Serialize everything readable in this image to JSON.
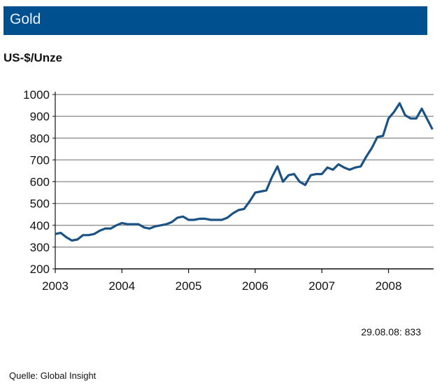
{
  "header": {
    "title": "Gold"
  },
  "chart_data": {
    "type": "line",
    "title": "Gold",
    "ylabel": "US-$/Unze",
    "xlabel": "",
    "ylim": [
      200,
      1000
    ],
    "yticks": [
      200,
      300,
      400,
      500,
      600,
      700,
      800,
      900,
      1000
    ],
    "xticks": [
      "2003",
      "2004",
      "2005",
      "2006",
      "2007",
      "2008"
    ],
    "xlim": [
      "2003-01",
      "2008-08"
    ],
    "grid": true,
    "line_color": "#1a5284",
    "x": [
      "2003-01",
      "2003-02",
      "2003-03",
      "2003-04",
      "2003-05",
      "2003-06",
      "2003-07",
      "2003-08",
      "2003-09",
      "2003-10",
      "2003-11",
      "2003-12",
      "2004-01",
      "2004-02",
      "2004-03",
      "2004-04",
      "2004-05",
      "2004-06",
      "2004-07",
      "2004-08",
      "2004-09",
      "2004-10",
      "2004-11",
      "2004-12",
      "2005-01",
      "2005-02",
      "2005-03",
      "2005-04",
      "2005-05",
      "2005-06",
      "2005-07",
      "2005-08",
      "2005-09",
      "2005-10",
      "2005-11",
      "2005-12",
      "2006-01",
      "2006-02",
      "2006-03",
      "2006-04",
      "2006-05",
      "2006-06",
      "2006-07",
      "2006-08",
      "2006-09",
      "2006-10",
      "2006-11",
      "2006-12",
      "2007-01",
      "2007-02",
      "2007-03",
      "2007-04",
      "2007-05",
      "2007-06",
      "2007-07",
      "2007-08",
      "2007-09",
      "2007-10",
      "2007-11",
      "2007-12",
      "2008-01",
      "2008-02",
      "2008-03",
      "2008-04",
      "2008-05",
      "2008-06",
      "2008-07",
      "2008-08"
    ],
    "values": [
      360,
      365,
      345,
      330,
      335,
      355,
      355,
      360,
      375,
      385,
      385,
      400,
      410,
      405,
      405,
      405,
      390,
      385,
      395,
      400,
      405,
      415,
      435,
      440,
      425,
      425,
      430,
      430,
      425,
      425,
      425,
      435,
      455,
      470,
      475,
      510,
      550,
      555,
      560,
      620,
      670,
      600,
      630,
      635,
      600,
      585,
      630,
      635,
      635,
      665,
      655,
      680,
      665,
      655,
      665,
      670,
      715,
      755,
      805,
      810,
      890,
      920,
      960,
      905,
      890,
      890,
      935,
      840
    ],
    "annotation": "29.08.08: 833",
    "source": "Quelle: Global Insight"
  }
}
